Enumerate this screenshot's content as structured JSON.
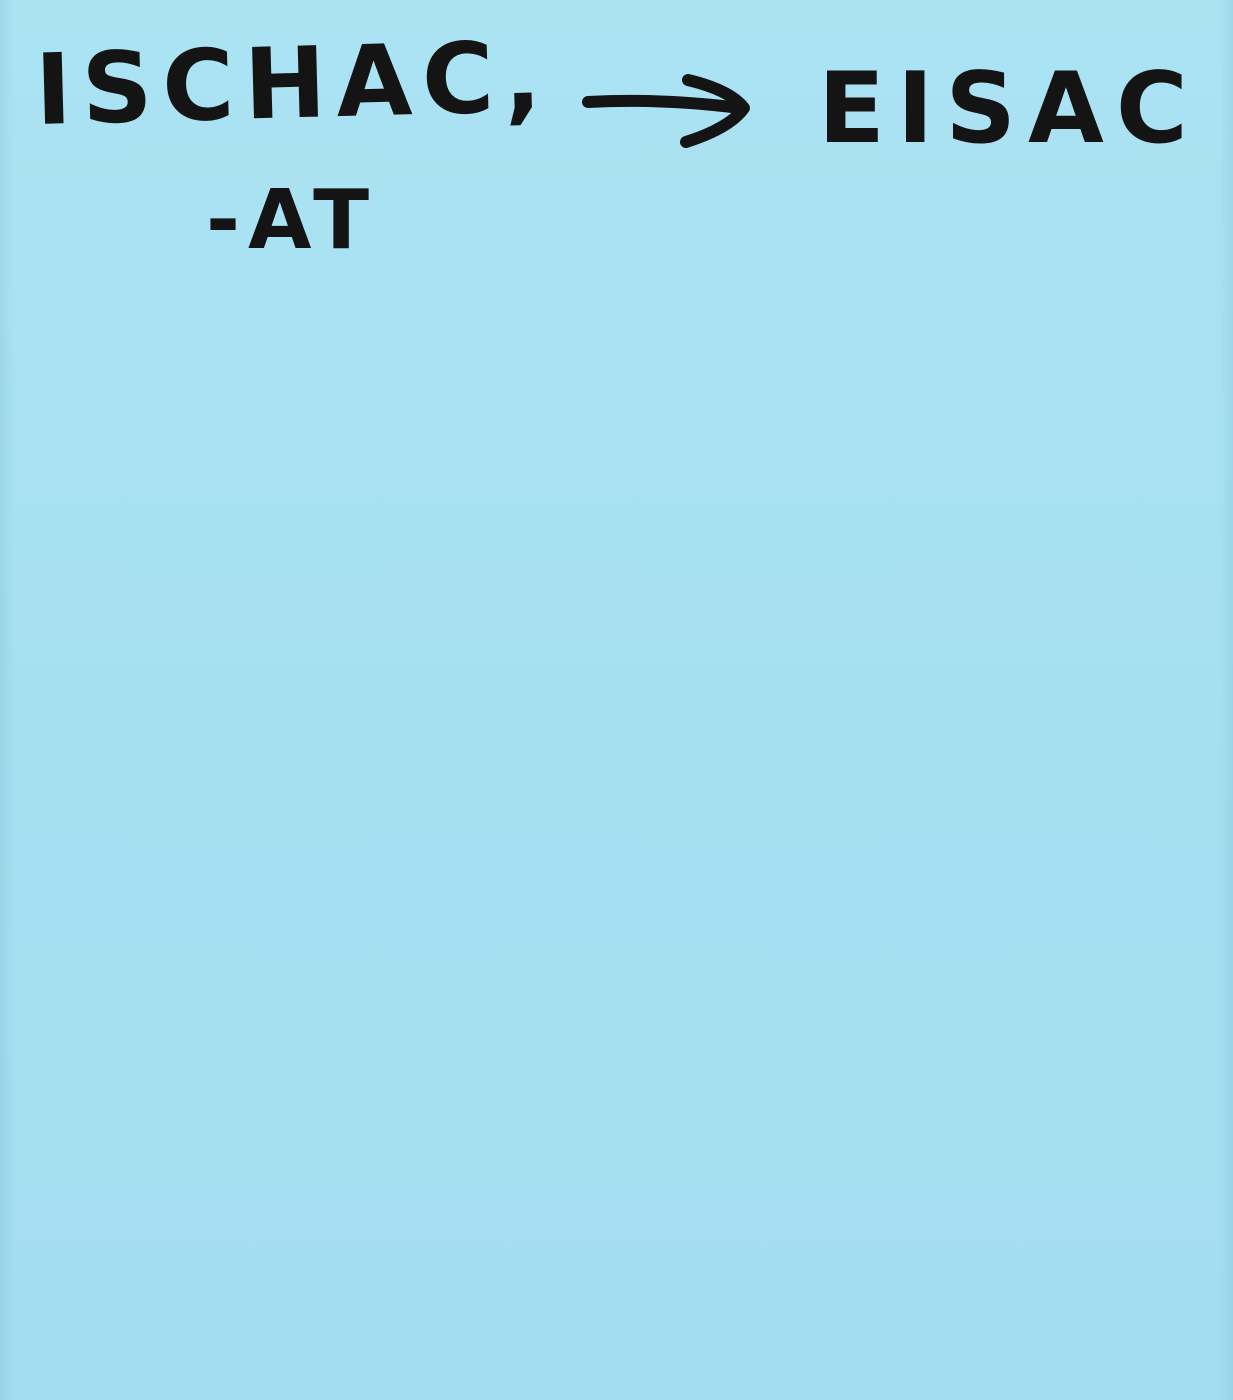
{
  "note": {
    "color": "#a6e1f1",
    "source_word": "ISCHAC,",
    "source_suffix": "-AT",
    "arrow_icon": "right-arrow-icon",
    "target_word": "EISAC"
  }
}
